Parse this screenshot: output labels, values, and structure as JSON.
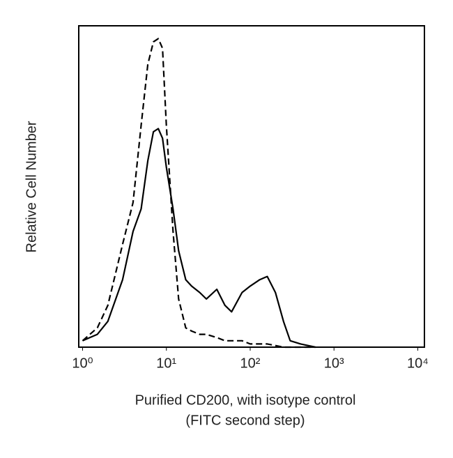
{
  "chart_data": {
    "type": "line",
    "ylabel": "Relative Cell Number",
    "xlabel": [
      "Purified CD200, with isotype control",
      "(FITC second step)"
    ],
    "xscale": "log",
    "xlim": [
      0.9,
      12000
    ],
    "ylim": [
      0,
      100
    ],
    "xticks": [
      {
        "value": 1,
        "label": "10⁰"
      },
      {
        "value": 10,
        "label": "10¹"
      },
      {
        "value": 100,
        "label": "10²"
      },
      {
        "value": 1000,
        "label": "10³"
      },
      {
        "value": 10000,
        "label": "10⁴"
      }
    ],
    "x": [
      1,
      1.5,
      2,
      3,
      4,
      5,
      6,
      7,
      8,
      9,
      10,
      12,
      14,
      17,
      20,
      25,
      30,
      40,
      50,
      60,
      80,
      100,
      130,
      160,
      200,
      250,
      300,
      400,
      600
    ],
    "series": [
      {
        "color": "#000000",
        "line_style": "solid",
        "values": [
          2,
          4,
          8,
          21,
          36,
          43,
          58,
          67,
          68,
          65,
          56,
          43,
          30,
          21,
          19,
          17,
          15,
          18,
          13,
          11,
          17,
          19,
          21,
          22,
          17,
          8,
          2,
          1,
          0
        ]
      },
      {
        "color": "#000000",
        "line_style": "dashed",
        "values": [
          2,
          6,
          13,
          32,
          45,
          69,
          88,
          95,
          96,
          93,
          69,
          36,
          15,
          6,
          5,
          4,
          4,
          3,
          2,
          2,
          2,
          1,
          1,
          1,
          0.5,
          0,
          0,
          0,
          0
        ]
      }
    ]
  }
}
